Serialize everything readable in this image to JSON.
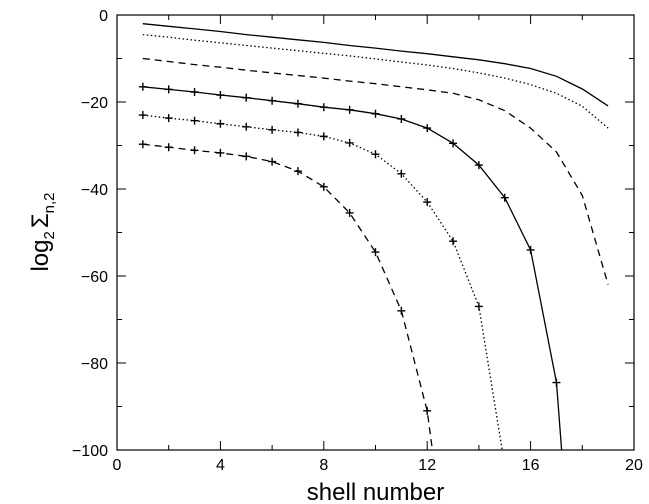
{
  "chart_data": {
    "type": "line",
    "title": "",
    "xlabel": "shell number",
    "ylabel_main": "log",
    "ylabel_sub": "2",
    "ylabel_sigma": "Σ",
    "ylabel_index": "n,2",
    "xlim": [
      0,
      20
    ],
    "ylim": [
      -100,
      0
    ],
    "x_ticks": [
      {
        "value": 0,
        "label": "0"
      },
      {
        "value": 4,
        "label": "4"
      },
      {
        "value": 8,
        "label": "8"
      },
      {
        "value": 12,
        "label": "12"
      },
      {
        "value": 16,
        "label": "16"
      },
      {
        "value": 20,
        "label": "20"
      }
    ],
    "y_ticks": [
      {
        "value": 0,
        "label": "0"
      },
      {
        "value": -20,
        "label": "−20"
      },
      {
        "value": -40,
        "label": "−40"
      },
      {
        "value": -60,
        "label": "−60"
      },
      {
        "value": -80,
        "label": "−80"
      },
      {
        "value": -100,
        "label": "−100"
      }
    ],
    "grid": false,
    "legend": "none",
    "line_color": "#000000",
    "series": [
      {
        "style": "solid",
        "markers": false,
        "x": [
          1,
          2,
          3,
          4,
          5,
          6,
          7,
          8,
          9,
          10,
          11,
          12,
          13,
          14,
          15,
          16,
          17,
          18,
          19
        ],
        "y": [
          -2.0,
          -2.6,
          -3.2,
          -3.8,
          -4.5,
          -5.1,
          -5.7,
          -6.3,
          -7.0,
          -7.6,
          -8.3,
          -8.9,
          -9.6,
          -10.3,
          -11.2,
          -12.3,
          -14.1,
          -17.0,
          -20.9
        ]
      },
      {
        "style": "dotted",
        "markers": false,
        "x": [
          1,
          2,
          3,
          4,
          5,
          6,
          7,
          8,
          9,
          10,
          11,
          12,
          13,
          14,
          15,
          16,
          17,
          18,
          19
        ],
        "y": [
          -4.5,
          -5.1,
          -5.8,
          -6.4,
          -7.0,
          -7.6,
          -8.2,
          -8.8,
          -9.4,
          -10.1,
          -10.8,
          -11.5,
          -12.3,
          -13.3,
          -14.5,
          -16.0,
          -18.0,
          -21.0,
          -26.0
        ]
      },
      {
        "style": "dashed",
        "markers": false,
        "x": [
          1,
          2,
          3,
          4,
          5,
          6,
          7,
          8,
          9,
          10,
          11,
          12,
          13,
          14,
          15,
          16,
          17,
          18,
          19
        ],
        "y": [
          -10.0,
          -10.7,
          -11.4,
          -12.0,
          -12.7,
          -13.3,
          -13.9,
          -14.5,
          -15.2,
          -15.8,
          -16.5,
          -17.2,
          -18.0,
          -19.5,
          -22.0,
          -26.0,
          -31.5,
          -41.5,
          -62.0
        ]
      },
      {
        "style": "solid",
        "markers": true,
        "x": [
          1,
          2,
          3,
          4,
          5,
          6,
          7,
          8,
          9,
          10,
          11,
          12,
          13,
          14,
          15,
          16,
          17,
          17.2
        ],
        "y": [
          -16.5,
          -17.1,
          -17.7,
          -18.4,
          -19.0,
          -19.7,
          -20.4,
          -21.2,
          -21.8,
          -22.7,
          -23.9,
          -26.0,
          -29.5,
          -34.5,
          -42.0,
          -54.0,
          -84.5,
          -100
        ]
      },
      {
        "style": "dotted",
        "markers": true,
        "x": [
          1,
          2,
          3,
          4,
          5,
          6,
          7,
          8,
          9,
          10,
          11,
          12,
          13,
          14,
          14.9
        ],
        "y": [
          -23.0,
          -23.7,
          -24.3,
          -25.0,
          -25.7,
          -26.4,
          -27.0,
          -27.9,
          -29.4,
          -32.0,
          -36.5,
          -43.0,
          -52.0,
          -67.0,
          -100
        ]
      },
      {
        "style": "dashed",
        "markers": true,
        "x": [
          1,
          2,
          3,
          4,
          5,
          6,
          7,
          8,
          9,
          10,
          11,
          12,
          12.2
        ],
        "y": [
          -29.7,
          -30.4,
          -31.1,
          -31.7,
          -32.5,
          -33.7,
          -35.9,
          -39.5,
          -45.5,
          -54.5,
          -68.0,
          -91.0,
          -100
        ]
      }
    ]
  }
}
